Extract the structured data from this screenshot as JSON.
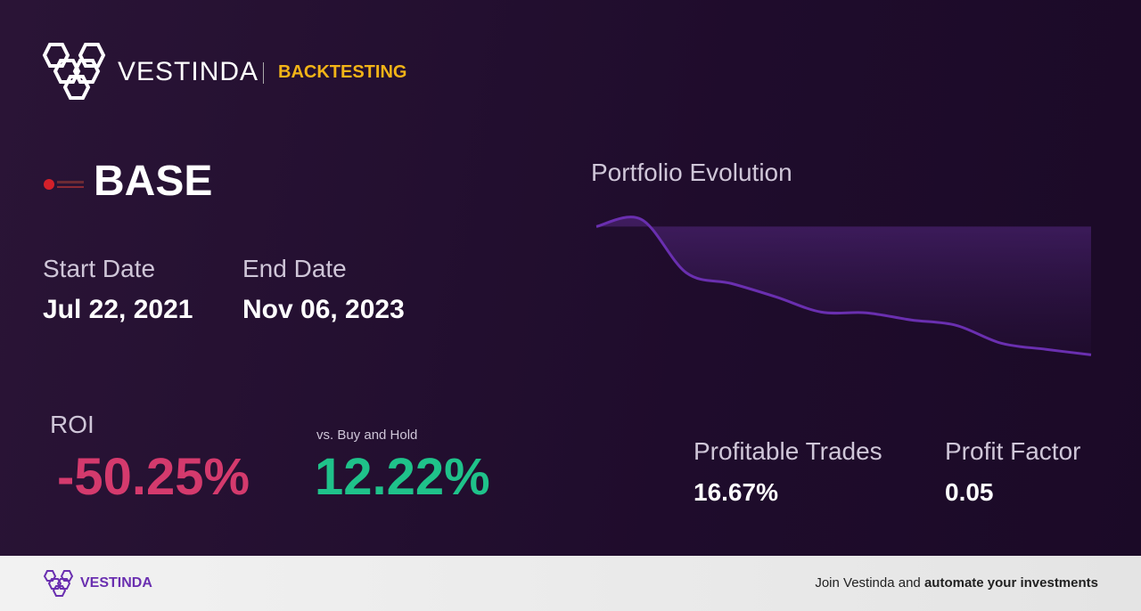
{
  "header": {
    "brand": "VESTINDA",
    "section": "BACKTESTING"
  },
  "asset": "BASE",
  "dates": {
    "start_label": "Start Date",
    "start": "Jul 22, 2021",
    "end_label": "End Date",
    "end": "Nov 06, 2023"
  },
  "roi": {
    "label": "ROI",
    "value": "-50.25%",
    "benchmark_label": "vs. Buy and Hold",
    "benchmark": "12.22%"
  },
  "stats": {
    "trades_label": "Profitable Trades",
    "trades": "16.67%",
    "factor_label": "Profit Factor",
    "factor": "0.05"
  },
  "chart_data": {
    "type": "area",
    "title": "Portfolio Evolution",
    "color": "#6a2fb0",
    "values": [
      100,
      102.8,
      81.9,
      77.7,
      72.4,
      66.5,
      66.2,
      63.4,
      61.3,
      54.3,
      51.9,
      49.75
    ],
    "ylim": [
      45,
      105
    ]
  },
  "footer": {
    "brand": "VESTINDA",
    "cta": "Join Vestinda and ",
    "cta_bold": "automate your investments"
  }
}
